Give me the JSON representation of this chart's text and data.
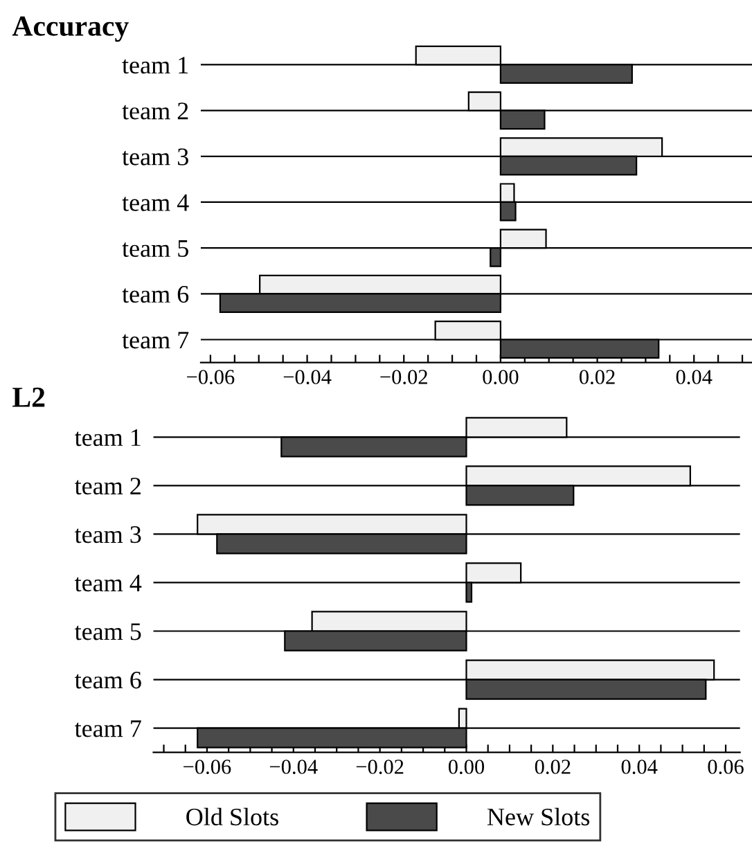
{
  "chart_data": [
    {
      "type": "bar",
      "orientation": "horizontal",
      "title": "Accuracy",
      "grid": "y",
      "legend": "bottom",
      "categories": [
        "team 1",
        "team 2",
        "team 3",
        "team 4",
        "team 5",
        "team 6",
        "team 7"
      ],
      "series": [
        {
          "name": "Old Slots",
          "color": "#f0f0f0",
          "values": [
            -0.0175,
            -0.0066,
            0.0334,
            0.0028,
            0.0094,
            -0.0498,
            -0.0135
          ]
        },
        {
          "name": "New Slots",
          "color": "#4a4a4a",
          "values": [
            0.0272,
            0.0091,
            0.0281,
            0.0031,
            -0.0021,
            -0.058,
            0.0327
          ]
        }
      ],
      "xlim": [
        -0.062,
        0.052
      ],
      "xticks": [
        {
          "value": -0.06,
          "label": "−0.06"
        },
        {
          "value": -0.055,
          "label": null
        },
        {
          "value": -0.05,
          "label": null
        },
        {
          "value": -0.045,
          "label": null
        },
        {
          "value": -0.04,
          "label": "−0.04"
        },
        {
          "value": -0.035,
          "label": null
        },
        {
          "value": -0.03,
          "label": null
        },
        {
          "value": -0.025,
          "label": null
        },
        {
          "value": -0.02,
          "label": "−0.02"
        },
        {
          "value": -0.015,
          "label": null
        },
        {
          "value": -0.01,
          "label": null
        },
        {
          "value": -0.005,
          "label": null
        },
        {
          "value": 0.0,
          "label": "0.00"
        },
        {
          "value": 0.005,
          "label": null
        },
        {
          "value": 0.01,
          "label": null
        },
        {
          "value": 0.015,
          "label": null
        },
        {
          "value": 0.02,
          "label": "0.02"
        },
        {
          "value": 0.025,
          "label": null
        },
        {
          "value": 0.03,
          "label": null
        },
        {
          "value": 0.035,
          "label": null
        },
        {
          "value": 0.04,
          "label": "0.04"
        },
        {
          "value": 0.045,
          "label": null
        },
        {
          "value": 0.05,
          "label": null
        }
      ]
    },
    {
      "type": "bar",
      "orientation": "horizontal",
      "title": "L2",
      "grid": "y",
      "legend": "bottom",
      "categories": [
        "team 1",
        "team 2",
        "team 3",
        "team 4",
        "team 5",
        "team 6",
        "team 7"
      ],
      "series": [
        {
          "name": "Old Slots",
          "color": "#f0f0f0",
          "values": [
            0.0232,
            0.0518,
            -0.0622,
            0.0126,
            -0.0357,
            0.0573,
            -0.0017
          ]
        },
        {
          "name": "New Slots",
          "color": "#4a4a4a",
          "values": [
            -0.0428,
            0.0248,
            -0.0577,
            0.0012,
            -0.042,
            0.0554,
            -0.0622
          ]
        }
      ],
      "xlim": [
        -0.0724,
        0.0633
      ],
      "xticks": [
        {
          "value": -0.07,
          "label": null
        },
        {
          "value": -0.065,
          "label": null
        },
        {
          "value": -0.06,
          "label": "−0.06"
        },
        {
          "value": -0.055,
          "label": null
        },
        {
          "value": -0.05,
          "label": null
        },
        {
          "value": -0.045,
          "label": null
        },
        {
          "value": -0.04,
          "label": "−0.04"
        },
        {
          "value": -0.035,
          "label": null
        },
        {
          "value": -0.03,
          "label": null
        },
        {
          "value": -0.025,
          "label": null
        },
        {
          "value": -0.02,
          "label": "−0.02"
        },
        {
          "value": -0.015,
          "label": null
        },
        {
          "value": -0.01,
          "label": null
        },
        {
          "value": -0.005,
          "label": null
        },
        {
          "value": 0.0,
          "label": "0.00"
        },
        {
          "value": 0.005,
          "label": null
        },
        {
          "value": 0.01,
          "label": null
        },
        {
          "value": 0.015,
          "label": null
        },
        {
          "value": 0.02,
          "label": "0.02"
        },
        {
          "value": 0.025,
          "label": null
        },
        {
          "value": 0.03,
          "label": null
        },
        {
          "value": 0.035,
          "label": null
        },
        {
          "value": 0.04,
          "label": "0.04"
        },
        {
          "value": 0.045,
          "label": null
        },
        {
          "value": 0.05,
          "label": null
        },
        {
          "value": 0.055,
          "label": null
        },
        {
          "value": 0.06,
          "label": "0.06"
        }
      ]
    }
  ]
}
